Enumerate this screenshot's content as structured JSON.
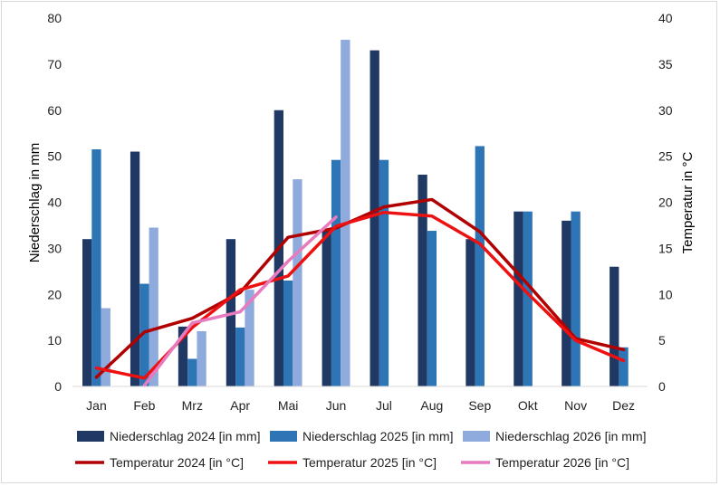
{
  "chart_data": {
    "type": "bar",
    "categories": [
      "Jan",
      "Feb",
      "Mrz",
      "Apr",
      "Mai",
      "Jun",
      "Jul",
      "Aug",
      "Sep",
      "Okt",
      "Nov",
      "Dez"
    ],
    "bar_series": [
      {
        "name": "Niederschlag 2024 [in mm]",
        "color": "#1f3864",
        "values": [
          32,
          51,
          13,
          32,
          60,
          34,
          73,
          46,
          32,
          38,
          36,
          26
        ]
      },
      {
        "name": "Niederschlag 2025 [in mm]",
        "color": "#2e75b6",
        "values": [
          51.5,
          22.3,
          6,
          12.8,
          23,
          49.2,
          49.2,
          33.8,
          52.2,
          38,
          38,
          8.5
        ]
      },
      {
        "name": "Niederschlag 2026 [in mm]",
        "color": "#8faadc",
        "values": [
          17,
          34.5,
          12,
          21,
          45,
          75.3,
          null,
          null,
          null,
          null,
          null,
          null
        ]
      }
    ],
    "line_series": [
      {
        "name": "Temperatur 2024 [in °C]",
        "color": "#b00000",
        "values": [
          1,
          5.9,
          7.4,
          10.2,
          16.2,
          17.2,
          19.5,
          20.3,
          16.8,
          11.1,
          5.2,
          4
        ]
      },
      {
        "name": "Temperatur 2025 [in °C]",
        "color": "#ee1111",
        "values": [
          2,
          0.9,
          6.4,
          10.5,
          12,
          17.4,
          18.9,
          18.5,
          15.5,
          10.1,
          5,
          2.8
        ]
      },
      {
        "name": "Temperatur 2026 [in °C]",
        "color": "#e87bbf",
        "values": [
          null,
          0.1,
          6.9,
          8.1,
          13.6,
          18.4,
          null,
          null,
          null,
          null,
          null,
          null
        ]
      }
    ],
    "ylabel_left": "Niederschlag in mm",
    "ylabel_right": "Temperatur in °C",
    "ylim_left": [
      0,
      80
    ],
    "ylim_right": [
      0,
      40
    ],
    "yticks_left": [
      "0",
      "10",
      "20",
      "30",
      "40",
      "50",
      "60",
      "70",
      "80"
    ],
    "yticks_right": [
      "0",
      "5",
      "10",
      "15",
      "20",
      "25",
      "30",
      "35",
      "40"
    ],
    "grid": false,
    "legend_position": "bottom"
  }
}
